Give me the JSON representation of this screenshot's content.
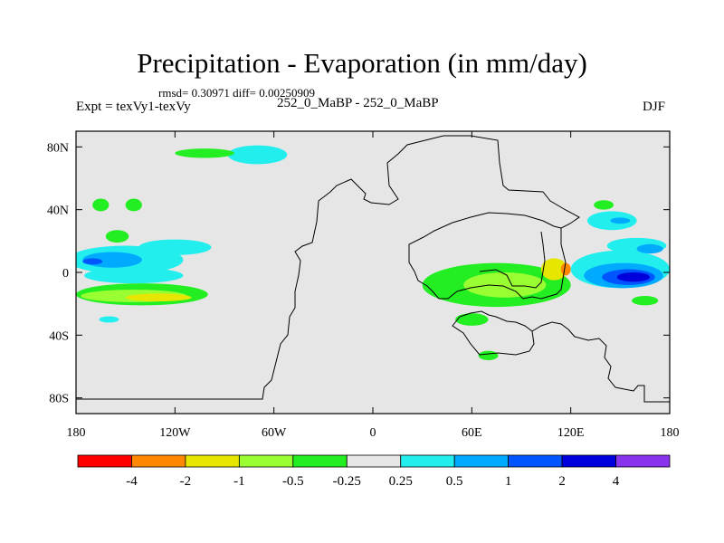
{
  "title": "Precipitation - Evaporation (in mm/day)",
  "stats_line": "rmsd= 0.30971 diff= 0.00250909",
  "left_label": "Expt = texVy1-texVy",
  "center_label": "252_0_MaBP - 252_0_MaBP",
  "right_label": "DJF",
  "chart_data": {
    "type": "heatmap",
    "title": "Precipitation - Evaporation (in mm/day)",
    "projection": "cylindrical equidistant",
    "xlim": [
      -180,
      180
    ],
    "ylim": [
      -90,
      90
    ],
    "x_ticks": [
      {
        "value": -180,
        "label": "180"
      },
      {
        "value": -120,
        "label": "120W"
      },
      {
        "value": -60,
        "label": "60W"
      },
      {
        "value": 0,
        "label": "0"
      },
      {
        "value": 60,
        "label": "60E"
      },
      {
        "value": 120,
        "label": "120E"
      },
      {
        "value": 180,
        "label": "180"
      }
    ],
    "y_ticks": [
      {
        "value": 80,
        "label": "80N"
      },
      {
        "value": 40,
        "label": "40N"
      },
      {
        "value": 0,
        "label": "0"
      },
      {
        "value": -40,
        "label": "40S"
      },
      {
        "value": -80,
        "label": "80S"
      }
    ],
    "colorbar": {
      "levels": [
        "-4",
        "-2",
        "-1",
        "-0.5",
        "-0.25",
        "0.25",
        "0.5",
        "1",
        "2",
        "4"
      ],
      "colors": [
        "#ff0000",
        "#ff8800",
        "#e6e600",
        "#99ff33",
        "#22ee22",
        "#e6e6e6",
        "#22eeee",
        "#00aaff",
        "#0055ff",
        "#0000dd",
        "#8833ee"
      ]
    },
    "background_bin_color": "#e6e6e6",
    "regions": [
      {
        "bin": "0.25",
        "lon": -150,
        "lat": 8,
        "dlon": 35,
        "dlat": 9
      },
      {
        "bin": "0.5",
        "lon": -158,
        "lat": 8,
        "dlon": 18,
        "dlat": 5
      },
      {
        "bin": "1",
        "lon": -170,
        "lat": 7,
        "dlon": 6,
        "dlat": 2
      },
      {
        "bin": "0.25",
        "lon": -120,
        "lat": 16,
        "dlon": 22,
        "dlat": 5
      },
      {
        "bin": "0.25",
        "lon": -145,
        "lat": -2,
        "dlon": 30,
        "dlat": 5
      },
      {
        "bin": "0.25",
        "lon": -70,
        "lat": 75,
        "dlon": 18,
        "dlat": 6
      },
      {
        "bin": "-0.25",
        "lon": -140,
        "lat": -14,
        "dlon": 40,
        "dlat": 7
      },
      {
        "bin": "-0.5",
        "lon": -145,
        "lat": -15,
        "dlon": 32,
        "dlat": 4
      },
      {
        "bin": "-1",
        "lon": -130,
        "lat": -16,
        "dlon": 20,
        "dlat": 2.5
      },
      {
        "bin": "-0.25",
        "lon": -102,
        "lat": 76,
        "dlon": 18,
        "dlat": 3
      },
      {
        "bin": "-0.25",
        "lon": -165,
        "lat": 43,
        "dlon": 5,
        "dlat": 4
      },
      {
        "bin": "-0.25",
        "lon": -145,
        "lat": 43,
        "dlon": 5,
        "dlat": 4
      },
      {
        "bin": "-0.25",
        "lon": -155,
        "lat": 23,
        "dlon": 7,
        "dlat": 4
      },
      {
        "bin": "-0.25",
        "lon": 75,
        "lat": -8,
        "dlon": 45,
        "dlat": 14
      },
      {
        "bin": "-0.5",
        "lon": 80,
        "lat": -8,
        "dlon": 25,
        "dlat": 8
      },
      {
        "bin": "-1",
        "lon": 110,
        "lat": 2,
        "dlon": 8,
        "dlat": 7
      },
      {
        "bin": "-2",
        "lon": 117,
        "lat": 2,
        "dlon": 3,
        "dlat": 4
      },
      {
        "bin": "-0.25",
        "lon": 60,
        "lat": -30,
        "dlon": 10,
        "dlat": 4
      },
      {
        "bin": "-0.25",
        "lon": 70,
        "lat": -53,
        "dlon": 6,
        "dlat": 3
      },
      {
        "bin": "0.25",
        "lon": 150,
        "lat": 2,
        "dlon": 30,
        "dlat": 12
      },
      {
        "bin": "0.5",
        "lon": 152,
        "lat": -2,
        "dlon": 24,
        "dlat": 8
      },
      {
        "bin": "1",
        "lon": 155,
        "lat": -3,
        "dlon": 16,
        "dlat": 5
      },
      {
        "bin": "2",
        "lon": 158,
        "lat": -3,
        "dlon": 10,
        "dlat": 3
      },
      {
        "bin": "0.25",
        "lon": 145,
        "lat": 33,
        "dlon": 15,
        "dlat": 6
      },
      {
        "bin": "0.5",
        "lon": 150,
        "lat": 33,
        "dlon": 6,
        "dlat": 2
      },
      {
        "bin": "0.25",
        "lon": 160,
        "lat": 17,
        "dlon": 18,
        "dlat": 5
      },
      {
        "bin": "0.5",
        "lon": 168,
        "lat": 15,
        "dlon": 8,
        "dlat": 3
      },
      {
        "bin": "-0.25",
        "lon": 140,
        "lat": 43,
        "dlon": 6,
        "dlat": 3
      },
      {
        "bin": "-0.25",
        "lon": 165,
        "lat": -18,
        "dlon": 8,
        "dlat": 3
      },
      {
        "bin": "0.25",
        "lon": -160,
        "lat": -30,
        "dlon": 6,
        "dlat": 2
      }
    ]
  }
}
